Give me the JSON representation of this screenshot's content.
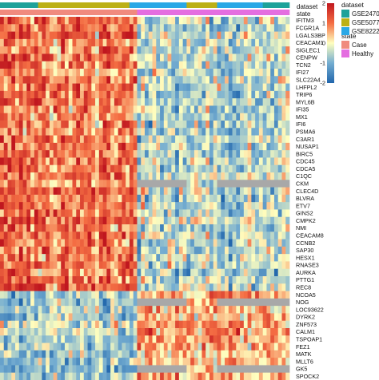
{
  "chart_data": {
    "type": "heatmap",
    "annotation_tracks": [
      {
        "name": "dataset",
        "segments": [
          {
            "group": "GSE24706",
            "color": "#1ea29a",
            "samples": 10
          },
          {
            "group": "GSE50772",
            "color": "#bcb016",
            "samples": 24
          },
          {
            "group": "GSE82221",
            "color": "#2aa8e6",
            "samples": 15
          },
          {
            "group": "GSE50772",
            "color": "#bcb016",
            "samples": 8
          },
          {
            "group": "GSE82221",
            "color": "#2aa8e6",
            "samples": 12
          },
          {
            "group": "GSE24706",
            "color": "#1ea29a",
            "samples": 7
          }
        ]
      },
      {
        "name": "state",
        "segments": [
          {
            "group": "Case",
            "color": "#f08a7e",
            "samples": 36
          },
          {
            "group": "Healthy",
            "color": "#e46ee0",
            "samples": 40
          }
        ]
      }
    ],
    "genes": [
      "IFITM3",
      "FCGR1A",
      "LGALS3BP",
      "CEACAM1",
      "SIGLEC1",
      "CENPW",
      "TCN2",
      "IFI27",
      "SLC22A4",
      "LHFPL2",
      "TRIP6",
      "MYL6B",
      "IFI35",
      "MX1",
      "IFI6",
      "PSMA6",
      "C3AR1",
      "NUSAP1",
      "BIRC5",
      "CDC45",
      "CDCA5",
      "C1QC",
      "CKM",
      "CLEC4D",
      "BLVRA",
      "ETV7",
      "GINS2",
      "CMPK2",
      "NMI",
      "CEACAM8",
      "CCNB2",
      "SAP30",
      "HESX1",
      "RNASE3",
      "AURKA",
      "PTTG1",
      "REC8",
      "NCOA5",
      "NOG",
      "LOC93622",
      "DYRK2",
      "ZNF573",
      "CALM1",
      "TSPOAP1",
      "FEZ1",
      "MATK",
      "MLLT6",
      "GK5",
      "SPOCK2"
    ],
    "gene_groups": [
      {
        "name": "up_in_case",
        "rows": "IFITM3-REC8",
        "case_level": 0.95,
        "healthy_level": -0.55
      },
      {
        "name": "down_in_case",
        "rows": "NCOA5-SPOCK2",
        "case_level": -0.7,
        "healthy_level": 0.6
      }
    ],
    "missing_blocks": [
      {
        "gene": "CKM",
        "dataset": "GSE82221",
        "healthy": true
      },
      {
        "gene": "CKM",
        "dataset": "GSE24706",
        "healthy": true
      },
      {
        "gene": "NOG",
        "dataset": "GSE82221",
        "healthy": true
      },
      {
        "gene": "NOG",
        "dataset": "GSE24706",
        "healthy": true
      },
      {
        "gene": "GK5",
        "dataset": "GSE82221",
        "healthy": true
      },
      {
        "gene": "GK5",
        "dataset": "GSE24706",
        "healthy": true
      }
    ],
    "color_scale": {
      "min": -2,
      "max": 2,
      "ticks": [
        2,
        1,
        0,
        -1,
        -2
      ],
      "colors": [
        "#2166ac",
        "#74add1",
        "#ffffbf",
        "#f46d43",
        "#c0171f"
      ],
      "missing_color": "#a8a8a8"
    },
    "legend": {
      "dataset_title": "dataset",
      "dataset_items": [
        {
          "label": "GSE24706",
          "color": "#1ea29a"
        },
        {
          "label": "GSE50772",
          "color": "#bcb016"
        },
        {
          "label": "GSE82221",
          "color": "#2aa8e6"
        }
      ],
      "state_title": "state",
      "state_items": [
        {
          "label": "Case",
          "color": "#f08a7e"
        },
        {
          "label": "Healthy",
          "color": "#e46ee0"
        }
      ]
    }
  }
}
